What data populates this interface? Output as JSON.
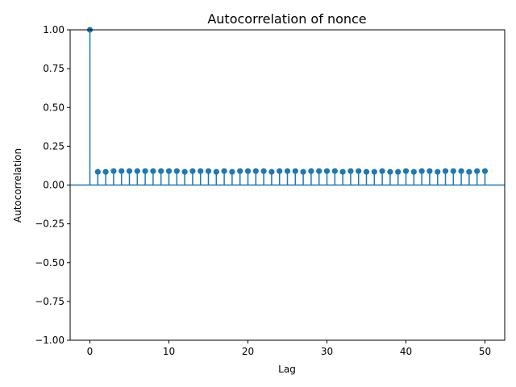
{
  "chart_data": {
    "type": "stem",
    "title": "Autocorrelation of nonce",
    "xlabel": "Lag",
    "ylabel": "Autocorrelation",
    "xlim": [
      -2.5,
      52.5
    ],
    "ylim": [
      -1.0,
      1.0
    ],
    "xticks": [
      0,
      10,
      20,
      30,
      40,
      50
    ],
    "xtick_labels": [
      "0",
      "10",
      "20",
      "30",
      "40",
      "50"
    ],
    "yticks": [
      -1.0,
      -0.75,
      -0.5,
      -0.25,
      0.0,
      0.25,
      0.5,
      0.75,
      1.0
    ],
    "ytick_labels": [
      "−1.00",
      "−0.75",
      "−0.50",
      "−0.25",
      "0.00",
      "0.25",
      "0.50",
      "0.75",
      "1.00"
    ],
    "grid": false,
    "baseline": 0.0,
    "color": "#1f77b4",
    "lags": [
      0,
      1,
      2,
      3,
      4,
      5,
      6,
      7,
      8,
      9,
      10,
      11,
      12,
      13,
      14,
      15,
      16,
      17,
      18,
      19,
      20,
      21,
      22,
      23,
      24,
      25,
      26,
      27,
      28,
      29,
      30,
      31,
      32,
      33,
      34,
      35,
      36,
      37,
      38,
      39,
      40,
      41,
      42,
      43,
      44,
      45,
      46,
      47,
      48,
      49,
      50
    ],
    "values": [
      1.0,
      0.085,
      0.085,
      0.09,
      0.09,
      0.09,
      0.09,
      0.09,
      0.09,
      0.09,
      0.09,
      0.09,
      0.085,
      0.09,
      0.09,
      0.09,
      0.085,
      0.09,
      0.085,
      0.09,
      0.09,
      0.09,
      0.09,
      0.085,
      0.09,
      0.09,
      0.09,
      0.085,
      0.09,
      0.09,
      0.09,
      0.09,
      0.085,
      0.09,
      0.09,
      0.085,
      0.085,
      0.09,
      0.085,
      0.085,
      0.09,
      0.085,
      0.09,
      0.09,
      0.085,
      0.09,
      0.09,
      0.09,
      0.085,
      0.09,
      0.09
    ]
  }
}
